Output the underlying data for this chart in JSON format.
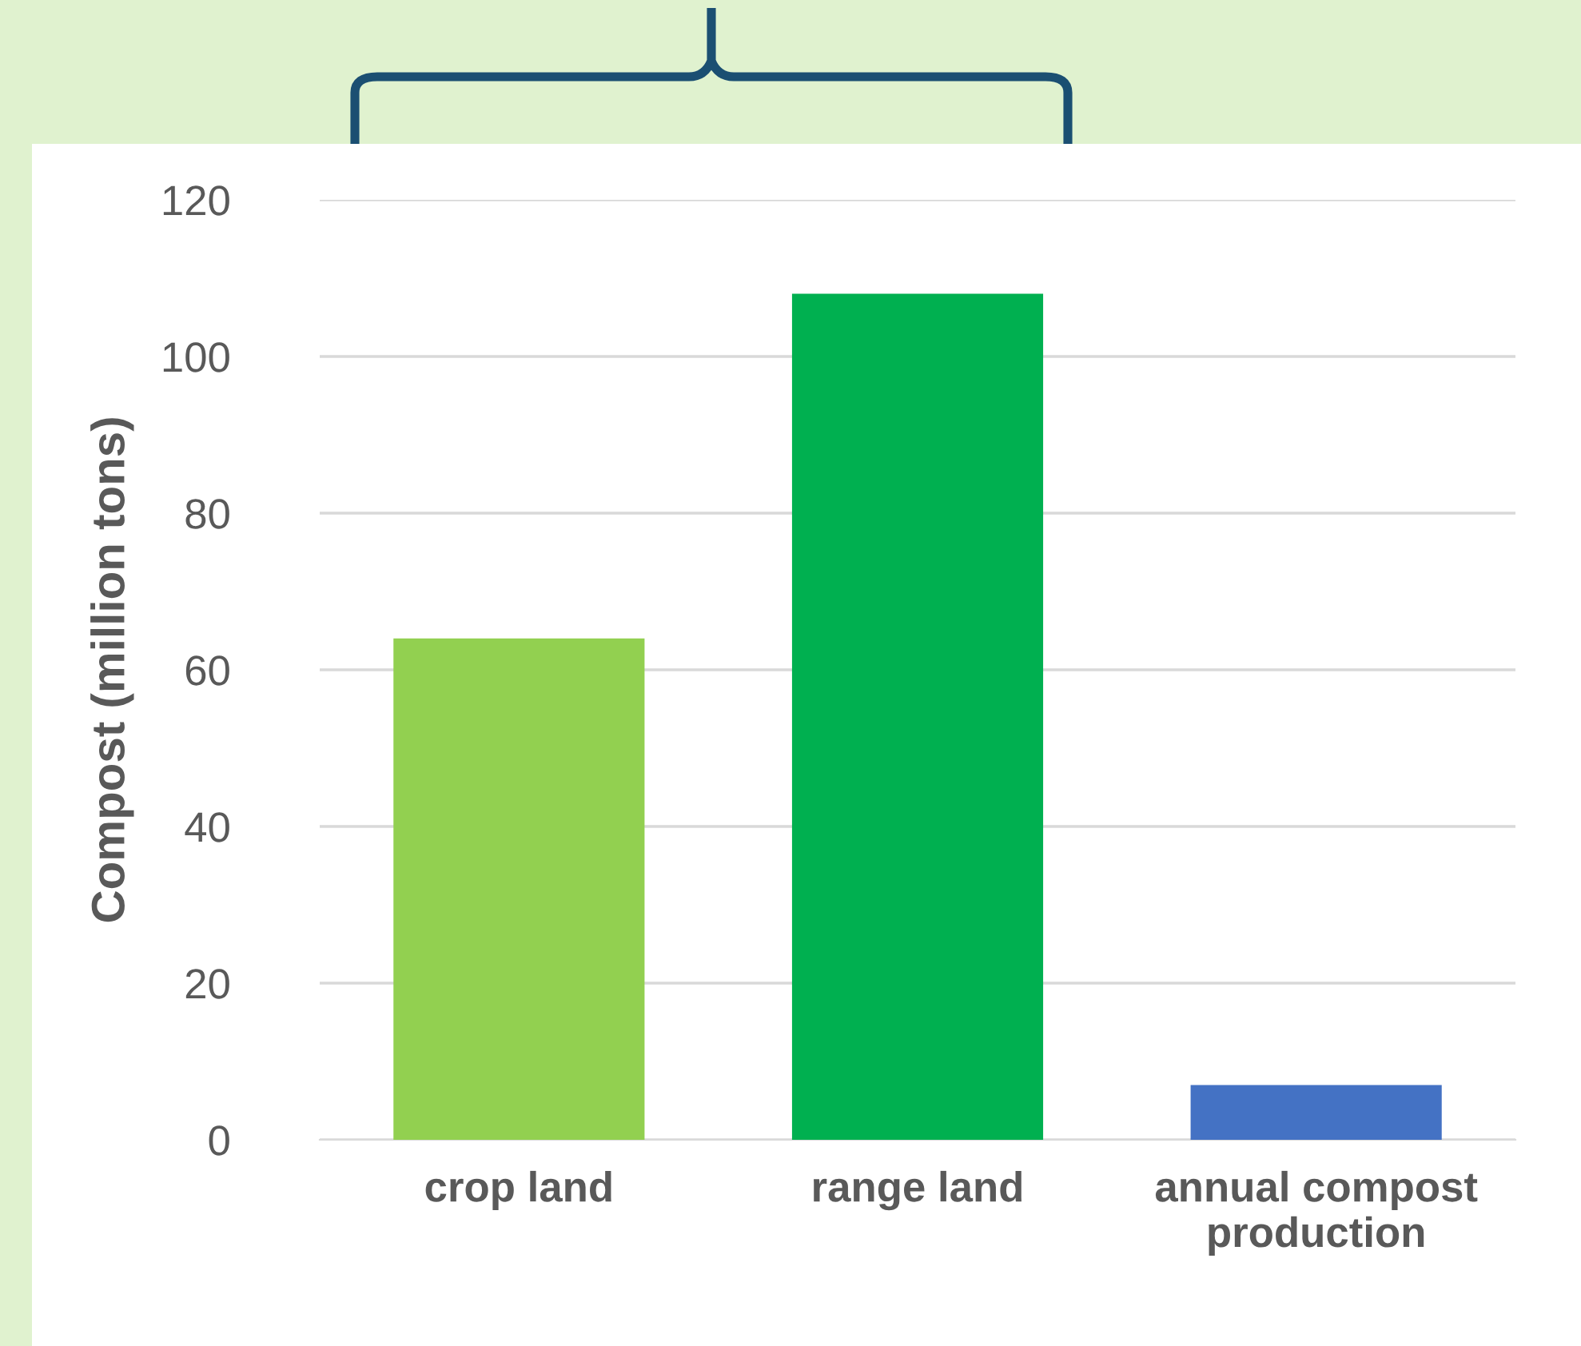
{
  "chart_data": {
    "type": "bar",
    "ylabel": "Compost (million tons)",
    "categories": [
      "crop land",
      "range land",
      "annual compost\nproduction"
    ],
    "values": [
      64,
      108,
      7
    ],
    "colors": [
      "#92d050",
      "#00b050",
      "#4472c4"
    ],
    "ylim": [
      0,
      120
    ],
    "yticks": [
      0,
      20,
      40,
      60,
      80,
      100,
      120
    ],
    "grid": "y"
  }
}
